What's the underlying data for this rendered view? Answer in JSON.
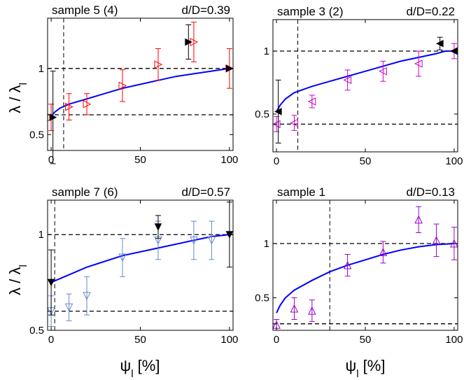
{
  "figure": {
    "ylabel_main": "λ / λ",
    "ylabel_sub": "l",
    "xlabel_main": "ψ",
    "xlabel_sub": "l",
    "xlabel_unit": " [%]"
  },
  "chart_data": [
    {
      "type": "scatter",
      "title": "sample 5 (4)",
      "annotation": "d/D=0.39",
      "xlim": [
        -2,
        102
      ],
      "ylim": [
        0.38,
        1.38
      ],
      "xticks": [
        0,
        50,
        100
      ],
      "yticks": [
        0.5,
        1
      ],
      "ytick_labels": [
        "0.5",
        "1"
      ],
      "grid": false,
      "marker": "triangle-right",
      "marker_color": "#ff0000",
      "fit_color": "#0000ff",
      "fit_points": [
        [
          0,
          0.64
        ],
        [
          2,
          0.67
        ],
        [
          5,
          0.7
        ],
        [
          10,
          0.73
        ],
        [
          20,
          0.77
        ],
        [
          30,
          0.81
        ],
        [
          40,
          0.85
        ],
        [
          50,
          0.88
        ],
        [
          60,
          0.91
        ],
        [
          70,
          0.94
        ],
        [
          80,
          0.96
        ],
        [
          90,
          0.98
        ],
        [
          100,
          1.0
        ]
      ],
      "hlines": [
        1.0,
        0.65
      ],
      "vline_x": 7,
      "points": [
        {
          "x": 0,
          "y": 0.63,
          "err": 0.1
        },
        {
          "x": 10,
          "y": 0.71,
          "err": 0.1
        },
        {
          "x": 20,
          "y": 0.73,
          "err": 0.08
        },
        {
          "x": 40,
          "y": 0.87,
          "err": 0.12
        },
        {
          "x": 60,
          "y": 1.03,
          "err": 0.12
        },
        {
          "x": 80,
          "y": 1.2,
          "err": 0.15
        },
        {
          "x": 100,
          "y": 1.0,
          "err": 0.15
        }
      ],
      "filled_points": [
        {
          "x": 1,
          "y": 0.63,
          "err": 0.35,
          "dir": "right"
        },
        {
          "x": 77,
          "y": 1.2,
          "err": 0.13,
          "dir": "right"
        },
        {
          "x": 100,
          "y": 1.0,
          "err": 0.0,
          "dir": "right"
        }
      ]
    },
    {
      "type": "scatter",
      "title": "sample 3 (2)",
      "annotation": "d/D=0.22",
      "xlim": [
        -2,
        102
      ],
      "ylim": [
        0.2,
        1.25
      ],
      "xticks": [
        0,
        50,
        100
      ],
      "yticks": [
        0.5,
        1
      ],
      "ytick_labels": [
        "0.5",
        "1"
      ],
      "grid": false,
      "marker": "triangle-left",
      "marker_color": "#cc00cc",
      "fit_color": "#0000ff",
      "fit_points": [
        [
          0,
          0.52
        ],
        [
          2,
          0.57
        ],
        [
          5,
          0.62
        ],
        [
          10,
          0.67
        ],
        [
          20,
          0.72
        ],
        [
          30,
          0.76
        ],
        [
          40,
          0.8
        ],
        [
          50,
          0.84
        ],
        [
          60,
          0.88
        ],
        [
          70,
          0.92
        ],
        [
          80,
          0.95
        ],
        [
          90,
          0.98
        ],
        [
          95,
          1.0
        ],
        [
          100,
          1.0
        ]
      ],
      "hlines": [
        1.0,
        0.42
      ],
      "vline_x": 12,
      "points": [
        {
          "x": 0,
          "y": 0.42,
          "err": 0.06
        },
        {
          "x": 10,
          "y": 0.43,
          "err": 0.06
        },
        {
          "x": 20,
          "y": 0.6,
          "err": 0.05
        },
        {
          "x": 40,
          "y": 0.77,
          "err": 0.08
        },
        {
          "x": 60,
          "y": 0.84,
          "err": 0.08
        },
        {
          "x": 80,
          "y": 0.9,
          "err": 0.1
        },
        {
          "x": 100,
          "y": 1.0,
          "err": 0.06
        }
      ],
      "filled_points": [
        {
          "x": 1,
          "y": 0.52,
          "err": 0.25,
          "dir": "left"
        },
        {
          "x": 92,
          "y": 1.06,
          "err": 0.05,
          "dir": "left"
        },
        {
          "x": 100,
          "y": 1.0,
          "err": 0.0,
          "dir": "left"
        }
      ]
    },
    {
      "type": "scatter",
      "title": "sample 7 (6)",
      "annotation": "d/D=0.57",
      "xlim": [
        -2,
        102
      ],
      "ylim": [
        0.5,
        1.18
      ],
      "xticks": [
        0,
        50,
        100
      ],
      "yticks": [
        0.5,
        1
      ],
      "ytick_labels": [
        "0.5",
        "1"
      ],
      "grid": false,
      "marker": "triangle-down",
      "marker_color": "#6688cc",
      "fit_color": "#0000ff",
      "fit_points": [
        [
          0,
          0.75
        ],
        [
          5,
          0.77
        ],
        [
          10,
          0.79
        ],
        [
          20,
          0.83
        ],
        [
          30,
          0.86
        ],
        [
          40,
          0.89
        ],
        [
          50,
          0.91
        ],
        [
          60,
          0.93
        ],
        [
          70,
          0.95
        ],
        [
          80,
          0.97
        ],
        [
          90,
          0.99
        ],
        [
          100,
          1.0
        ]
      ],
      "hlines": [
        1.0,
        0.6
      ],
      "vline_x": 2,
      "points": [
        {
          "x": 0,
          "y": 0.6,
          "err": 0.08
        },
        {
          "x": 10,
          "y": 0.62,
          "err": 0.07
        },
        {
          "x": 20,
          "y": 0.68,
          "err": 0.1
        },
        {
          "x": 40,
          "y": 0.88,
          "err": 0.1
        },
        {
          "x": 60,
          "y": 0.97,
          "err": 0.1
        },
        {
          "x": 80,
          "y": 0.97,
          "err": 0.1
        },
        {
          "x": 90,
          "y": 0.97,
          "err": 0.1
        }
      ],
      "filled_points": [
        {
          "x": 0,
          "y": 0.75,
          "err": 0.17,
          "dir": "down"
        },
        {
          "x": 60,
          "y": 1.04,
          "err": 0.06,
          "dir": "down"
        },
        {
          "x": 100,
          "y": 1.0,
          "err": 0.17,
          "dir": "down"
        }
      ]
    },
    {
      "type": "scatter",
      "title": "sample 1",
      "annotation": "d/D=0.13",
      "xlim": [
        -2,
        102
      ],
      "ylim": [
        0.2,
        1.4
      ],
      "xticks": [
        0,
        50,
        100
      ],
      "yticks": [
        0.5,
        1
      ],
      "ytick_labels": [
        "0.5",
        "1"
      ],
      "grid": false,
      "marker": "triangle-up",
      "marker_color": "#9900cc",
      "fit_color": "#0000ff",
      "fit_points": [
        [
          0,
          0.36
        ],
        [
          2,
          0.43
        ],
        [
          5,
          0.5
        ],
        [
          10,
          0.57
        ],
        [
          20,
          0.66
        ],
        [
          30,
          0.74
        ],
        [
          40,
          0.8
        ],
        [
          50,
          0.85
        ],
        [
          60,
          0.9
        ],
        [
          70,
          0.94
        ],
        [
          80,
          0.97
        ],
        [
          90,
          0.99
        ],
        [
          100,
          1.0
        ]
      ],
      "hlines": [
        1.0,
        0.26
      ],
      "vline_x": 30,
      "points": [
        {
          "x": 0,
          "y": 0.25,
          "err": 0.05
        },
        {
          "x": 10,
          "y": 0.4,
          "err": 0.1
        },
        {
          "x": 20,
          "y": 0.38,
          "err": 0.1
        },
        {
          "x": 40,
          "y": 0.8,
          "err": 0.1
        },
        {
          "x": 60,
          "y": 0.92,
          "err": 0.1
        },
        {
          "x": 80,
          "y": 1.22,
          "err": 0.12
        },
        {
          "x": 90,
          "y": 1.03,
          "err": 0.15
        },
        {
          "x": 100,
          "y": 1.0,
          "err": 0.15
        }
      ],
      "filled_points": []
    }
  ]
}
